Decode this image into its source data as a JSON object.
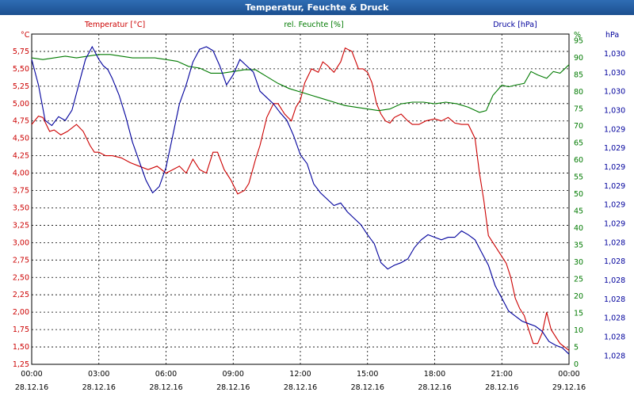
{
  "window": {
    "title": "Temperatur, Feuchte & Druck"
  },
  "colors": {
    "temperature": "#cc0000",
    "humidity": "#007a00",
    "pressure": "#00009c",
    "grid": "#000000"
  },
  "chart_data": {
    "type": "line",
    "grid": true,
    "legend": "top labels per axis",
    "x_ticks": [
      {
        "time": "00:00",
        "date": "28.12.16"
      },
      {
        "time": "03:00",
        "date": "28.12.16"
      },
      {
        "time": "06:00",
        "date": "28.12.16"
      },
      {
        "time": "09:00",
        "date": "28.12.16"
      },
      {
        "time": "12:00",
        "date": "28.12.16"
      },
      {
        "time": "15:00",
        "date": "28.12.16"
      },
      {
        "time": "18:00",
        "date": "28.12.16"
      },
      {
        "time": "21:00",
        "date": "28.12.16"
      },
      {
        "time": "00:00",
        "date": "29.12.16"
      }
    ],
    "x_range_hours": [
      0,
      24
    ],
    "axes": {
      "temperature": {
        "label": "Temperatur [°C]",
        "unit": "°C",
        "range": [
          1.25,
          6.0
        ],
        "ticks": [
          "1,25",
          "1,50",
          "1,75",
          "2,00",
          "2,25",
          "2,50",
          "2,75",
          "3,00",
          "3,25",
          "3,50",
          "3,75",
          "4,00",
          "4,25",
          "4,50",
          "4,75",
          "5,00",
          "5,25",
          "5,50",
          "5,75"
        ]
      },
      "humidity": {
        "label": "rel. Feuchte [%]",
        "unit": "%",
        "range": [
          0,
          97
        ],
        "ticks": [
          "0",
          "5",
          "10",
          "15",
          "20",
          "25",
          "30",
          "35",
          "40",
          "45",
          "50",
          "55",
          "60",
          "65",
          "70",
          "75",
          "80",
          "85",
          "90",
          "95"
        ]
      },
      "pressure": {
        "label": "Druck [hPa]",
        "unit": "hPa",
        "range": [
          1027.8,
          1030.4
        ],
        "ticks": [
          "1,028",
          "1,028",
          "1,028",
          "1,028",
          "1,028",
          "1,028",
          "1,028",
          "1,029",
          "1,029",
          "1,029",
          "1,029",
          "1,029",
          "1,029",
          "1,030",
          "1,030",
          "1,030",
          "1,030"
        ]
      }
    },
    "series": [
      {
        "name": "Temperatur [°C]",
        "axis": "temperature",
        "x": [
          0,
          0.3,
          0.5,
          0.8,
          1,
          1.3,
          1.6,
          2,
          2.3,
          2.6,
          2.8,
          3,
          3.3,
          3.6,
          4,
          4.4,
          4.8,
          5.2,
          5.6,
          6,
          6.3,
          6.6,
          6.9,
          7.2,
          7.5,
          7.8,
          8.1,
          8.3,
          8.6,
          8.9,
          9.2,
          9.5,
          9.7,
          10,
          10.2,
          10.5,
          10.8,
          11,
          11.3,
          11.6,
          11.8,
          12,
          12.2,
          12.5,
          12.8,
          13,
          13.2,
          13.5,
          13.8,
          14,
          14.3,
          14.6,
          14.8,
          15,
          15.2,
          15.4,
          15.6,
          15.8,
          16,
          16.2,
          16.5,
          16.8,
          17,
          17.3,
          17.6,
          18,
          18.3,
          18.6,
          18.9,
          19.2,
          19.5,
          19.8,
          20,
          20.2,
          20.4,
          20.6,
          20.8,
          21,
          21.2,
          21.4,
          21.6,
          21.8,
          22,
          22.2,
          22.4,
          22.6,
          22.8,
          23,
          23.2,
          23.4,
          23.6,
          23.8,
          24
        ],
        "values": [
          4.7,
          4.82,
          4.8,
          4.6,
          4.62,
          4.55,
          4.6,
          4.7,
          4.6,
          4.4,
          4.3,
          4.3,
          4.25,
          4.25,
          4.22,
          4.15,
          4.1,
          4.05,
          4.1,
          4.0,
          4.05,
          4.1,
          4.0,
          4.2,
          4.05,
          4.0,
          4.3,
          4.3,
          4.05,
          3.9,
          3.7,
          3.75,
          3.85,
          4.2,
          4.4,
          4.8,
          5.0,
          5.0,
          4.85,
          4.75,
          4.95,
          5.05,
          5.3,
          5.5,
          5.45,
          5.6,
          5.55,
          5.45,
          5.6,
          5.8,
          5.75,
          5.5,
          5.5,
          5.45,
          5.3,
          5.0,
          4.85,
          4.75,
          4.72,
          4.8,
          4.85,
          4.75,
          4.7,
          4.7,
          4.75,
          4.78,
          4.75,
          4.8,
          4.72,
          4.7,
          4.7,
          4.5,
          4.0,
          3.6,
          3.1,
          3.0,
          2.9,
          2.8,
          2.7,
          2.5,
          2.2,
          2.05,
          1.95,
          1.75,
          1.55,
          1.55,
          1.7,
          2.0,
          1.75,
          1.65,
          1.55,
          1.5,
          1.45
        ]
      },
      {
        "name": "rel. Feuchte [%]",
        "axis": "humidity",
        "x": [
          0,
          0.5,
          1,
          1.5,
          2,
          2.5,
          3,
          3.5,
          4,
          4.5,
          5,
          5.5,
          6,
          6.5,
          7,
          7.5,
          8,
          8.5,
          9,
          9.5,
          10,
          10.5,
          11,
          11.5,
          12,
          12.5,
          13,
          13.5,
          14,
          14.5,
          15,
          15.5,
          16,
          16.5,
          17,
          17.5,
          18,
          18.5,
          19,
          19.5,
          20,
          20.3,
          20.6,
          21,
          21.3,
          21.6,
          22,
          22.3,
          22.6,
          23,
          23.3,
          23.6,
          24
        ],
        "values": [
          90,
          89.5,
          90,
          90.5,
          90,
          90.5,
          91,
          91,
          90.5,
          90,
          90,
          90,
          89.5,
          89,
          87.5,
          87,
          85.5,
          85.5,
          86,
          86.5,
          86.5,
          84.5,
          82.5,
          81,
          80,
          79,
          78,
          77,
          76,
          75.5,
          75,
          74.5,
          75,
          76.5,
          77,
          77,
          76.5,
          77,
          76.5,
          75.5,
          74,
          74.5,
          79,
          82,
          81.5,
          82,
          82.5,
          86,
          85,
          84,
          86,
          85.5,
          88
        ]
      },
      {
        "name": "Druck [hPa]",
        "axis": "pressure",
        "x": [
          0,
          0.3,
          0.6,
          0.9,
          1.2,
          1.5,
          1.8,
          2.1,
          2.4,
          2.7,
          3,
          3.2,
          3.4,
          3.6,
          3.9,
          4.2,
          4.5,
          4.8,
          5.1,
          5.4,
          5.7,
          6,
          6.3,
          6.6,
          6.9,
          7.2,
          7.5,
          7.8,
          8.1,
          8.4,
          8.7,
          9,
          9.3,
          9.6,
          9.9,
          10.2,
          10.5,
          10.8,
          11.1,
          11.4,
          11.7,
          12,
          12.3,
          12.6,
          12.9,
          13.2,
          13.5,
          13.8,
          14.1,
          14.4,
          14.7,
          15,
          15.3,
          15.6,
          15.9,
          16.2,
          16.5,
          16.8,
          17.1,
          17.4,
          17.7,
          18,
          18.3,
          18.6,
          18.9,
          19.2,
          19.5,
          19.8,
          20.1,
          20.4,
          20.7,
          21,
          21.3,
          21.6,
          21.9,
          22.2,
          22.5,
          22.8,
          23.1,
          23.4,
          23.7,
          24
        ],
        "values": [
          1030.2,
          1030.0,
          1029.72,
          1029.68,
          1029.75,
          1029.72,
          1029.8,
          1030.0,
          1030.2,
          1030.3,
          1030.2,
          1030.15,
          1030.12,
          1030.05,
          1029.92,
          1029.75,
          1029.55,
          1029.4,
          1029.25,
          1029.15,
          1029.2,
          1029.35,
          1029.6,
          1029.85,
          1030.0,
          1030.18,
          1030.28,
          1030.3,
          1030.27,
          1030.15,
          1030.0,
          1030.08,
          1030.2,
          1030.15,
          1030.1,
          1029.95,
          1029.9,
          1029.85,
          1029.78,
          1029.72,
          1029.6,
          1029.45,
          1029.38,
          1029.22,
          1029.15,
          1029.1,
          1029.05,
          1029.07,
          1029.0,
          1028.95,
          1028.9,
          1028.82,
          1028.75,
          1028.6,
          1028.55,
          1028.58,
          1028.6,
          1028.63,
          1028.72,
          1028.78,
          1028.82,
          1028.8,
          1028.78,
          1028.8,
          1028.8,
          1028.85,
          1028.82,
          1028.78,
          1028.68,
          1028.58,
          1028.42,
          1028.32,
          1028.22,
          1028.18,
          1028.14,
          1028.12,
          1028.1,
          1028.06,
          1027.98,
          1027.95,
          1027.93,
          1027.88
        ]
      }
    ]
  }
}
